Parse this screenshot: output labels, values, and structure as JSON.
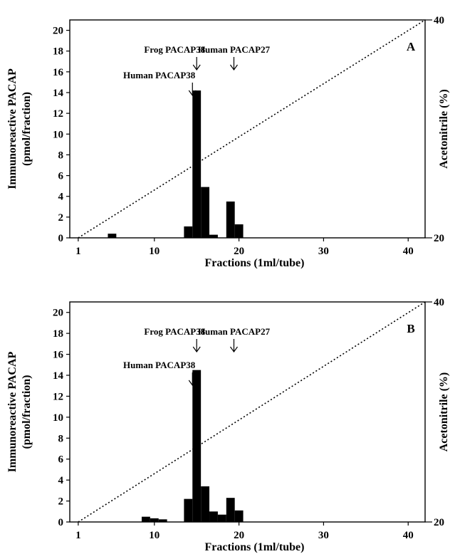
{
  "chart_data": [
    {
      "type": "bar",
      "panel_label": "A",
      "xlabel": "Fractions (1ml/tube)",
      "ylabel_lines": [
        "Immunoreactive PACAP",
        "(pmol/fraction)"
      ],
      "y2label": "Acetonitrile (%)",
      "xlim": [
        0,
        42
      ],
      "ylim": [
        0,
        21
      ],
      "x_ticks": [
        1,
        10,
        20,
        30,
        40
      ],
      "y_ticks": [
        0,
        2,
        4,
        6,
        8,
        10,
        12,
        14,
        16,
        18,
        20
      ],
      "y2lim": [
        20,
        40
      ],
      "y2_ticks": [
        20,
        40
      ],
      "bars": [
        {
          "x": 5,
          "value": 0.4
        },
        {
          "x": 14,
          "value": 1.1
        },
        {
          "x": 15,
          "value": 14.2
        },
        {
          "x": 16,
          "value": 4.9
        },
        {
          "x": 17,
          "value": 0.3
        },
        {
          "x": 19,
          "value": 3.5
        },
        {
          "x": 20,
          "value": 1.3
        }
      ],
      "gradient_line": {
        "from": [
          1,
          20
        ],
        "to": [
          42,
          40
        ],
        "style": "dotted"
      },
      "annotations": [
        {
          "text": "Frog PACAP38",
          "x": 15
        },
        {
          "text": "Human PACAP38",
          "x": 14.5
        },
        {
          "text": "Human PACAP27",
          "x": 19.4
        }
      ]
    },
    {
      "type": "bar",
      "panel_label": "B",
      "xlabel": "Fractions (1ml/tube)",
      "ylabel_lines": [
        "Immunoreactive PACAP",
        "(pmol/fraction)"
      ],
      "y2label": "Acetonitrile (%)",
      "xlim": [
        0,
        42
      ],
      "ylim": [
        0,
        21
      ],
      "x_ticks": [
        1,
        10,
        20,
        30,
        40
      ],
      "y_ticks": [
        0,
        2,
        4,
        6,
        8,
        10,
        12,
        14,
        16,
        18,
        20
      ],
      "y2lim": [
        20,
        40
      ],
      "y2_ticks": [
        20,
        40
      ],
      "bars": [
        {
          "x": 9,
          "value": 0.5
        },
        {
          "x": 10,
          "value": 0.35
        },
        {
          "x": 11,
          "value": 0.25
        },
        {
          "x": 14,
          "value": 2.2
        },
        {
          "x": 15,
          "value": 14.5
        },
        {
          "x": 16,
          "value": 3.4
        },
        {
          "x": 17,
          "value": 1.0
        },
        {
          "x": 18,
          "value": 0.7
        },
        {
          "x": 19,
          "value": 2.3
        },
        {
          "x": 20,
          "value": 1.1
        }
      ],
      "gradient_line": {
        "from": [
          1,
          20
        ],
        "to": [
          42,
          40
        ],
        "style": "dotted"
      },
      "annotations": [
        {
          "text": "Frog PACAP38",
          "x": 15
        },
        {
          "text": "Human PACAP38",
          "x": 14.5
        },
        {
          "text": "Human PACAP27",
          "x": 19.4
        }
      ]
    }
  ]
}
